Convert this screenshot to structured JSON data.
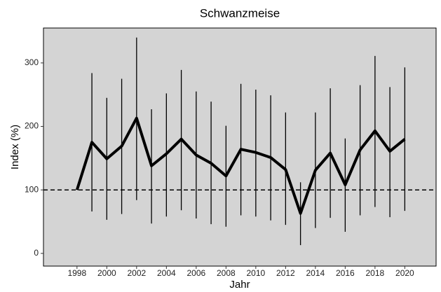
{
  "chart_data": {
    "type": "line",
    "title": "Schwanzmeise",
    "xlabel": "Jahr",
    "ylabel": "Index (%)",
    "x": [
      1998,
      1999,
      2000,
      2001,
      2002,
      2003,
      2004,
      2005,
      2006,
      2007,
      2008,
      2009,
      2010,
      2011,
      2012,
      2013,
      2014,
      2015,
      2016,
      2017,
      2018,
      2019,
      2020
    ],
    "series": [
      {
        "color": "#000000",
        "values": [
          100,
          175,
          149,
          169,
          213,
          138,
          157,
          180,
          155,
          142,
          122,
          164,
          159,
          151,
          132,
          63,
          131,
          158,
          108,
          163,
          193,
          161,
          180
        ],
        "lower": [
          null,
          66,
          53,
          62,
          84,
          47,
          58,
          68,
          55,
          46,
          42,
          60,
          58,
          52,
          45,
          13,
          40,
          56,
          34,
          60,
          73,
          57,
          67
        ],
        "upper": [
          null,
          284,
          245,
          275,
          340,
          227,
          252,
          289,
          255,
          239,
          201,
          267,
          258,
          249,
          222,
          112,
          222,
          260,
          181,
          265,
          311,
          262,
          293
        ]
      }
    ],
    "hline": 100,
    "xlim": [
      1995.75,
      2022.1
    ],
    "ylim": [
      -20,
      355
    ],
    "xticks": [
      1998,
      2000,
      2002,
      2004,
      2006,
      2008,
      2010,
      2012,
      2014,
      2016,
      2018,
      2020
    ],
    "yticks": [
      0,
      100,
      200,
      300
    ],
    "panel_color": "#d4d4d4"
  }
}
